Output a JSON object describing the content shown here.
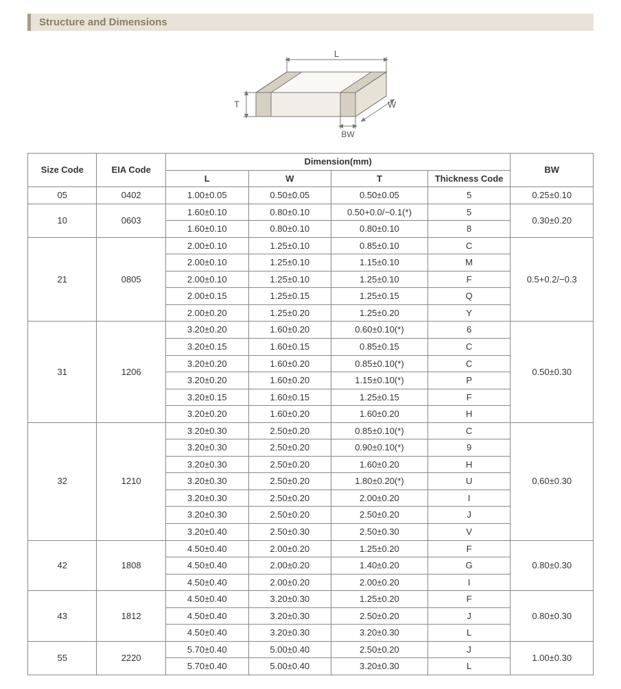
{
  "section_title": "Structure and Dimensions",
  "diagram": {
    "labels": {
      "L": "L",
      "W": "W",
      "T": "T",
      "BW": "BW"
    },
    "stroke": "#777777",
    "fill_top": "#faf8f5",
    "fill_front": "#f2eee6",
    "fill_side": "#e8e2d6",
    "fill_terminal": "#d6d0c3"
  },
  "table": {
    "headers": {
      "size": "Size Code",
      "eia": "EIA Code",
      "dim": "Dimension(mm)",
      "L": "L",
      "W": "W",
      "T": "T",
      "TC": "Thickness  Code",
      "BW": "BW"
    },
    "groups": [
      {
        "size": "05",
        "eia": "0402",
        "bw": "0.25±0.10",
        "rows": [
          {
            "L": "1.00±0.05",
            "W": "0.50±0.05",
            "T": "0.50±0.05",
            "TC": "5"
          }
        ]
      },
      {
        "size": "10",
        "eia": "0603",
        "bw": "0.30±0.20",
        "rows": [
          {
            "L": "1.60±0.10",
            "W": "0.80±0.10",
            "T": "0.50+0.0/−0.1(*)",
            "TC": "5"
          },
          {
            "L": "1.60±0.10",
            "W": "0.80±0.10",
            "T": "0.80±0.10",
            "TC": "8"
          }
        ]
      },
      {
        "size": "21",
        "eia": "0805",
        "bw": "0.5+0.2/−0.3",
        "rows": [
          {
            "L": "2.00±0.10",
            "W": "1.25±0.10",
            "T": "0.85±0.10",
            "TC": "C"
          },
          {
            "L": "2.00±0.10",
            "W": "1.25±0.10",
            "T": "1.15±0.10",
            "TC": "M"
          },
          {
            "L": "2.00±0.10",
            "W": "1.25±0.10",
            "T": "1.25±0.10",
            "TC": "F"
          },
          {
            "L": "2.00±0.15",
            "W": "1.25±0.15",
            "T": "1.25±0.15",
            "TC": "Q"
          },
          {
            "L": "2.00±0.20",
            "W": "1.25±0.20",
            "T": "1.25±0.20",
            "TC": "Y"
          }
        ]
      },
      {
        "size": "31",
        "eia": "1206",
        "bw": "0.50±0.30",
        "rows": [
          {
            "L": "3.20±0.20",
            "W": "1.60±0.20",
            "T": "0.60±0.10(*)",
            "TC": "6"
          },
          {
            "L": "3.20±0.15",
            "W": "1.60±0.15",
            "T": "0.85±0.15",
            "TC": "C"
          },
          {
            "L": "3.20±0.20",
            "W": "1.60±0.20",
            "T": "0.85±0.10(*)",
            "TC": "C"
          },
          {
            "L": "3.20±0.20",
            "W": "1.60±0.20",
            "T": "1.15±0.10(*)",
            "TC": "P"
          },
          {
            "L": "3.20±0.15",
            "W": "1.60±0.15",
            "T": "1.25±0.15",
            "TC": "F"
          },
          {
            "L": "3.20±0.20",
            "W": "1.60±0.20",
            "T": "1.60±0.20",
            "TC": "H"
          }
        ]
      },
      {
        "size": "32",
        "eia": "1210",
        "bw": "0.60±0.30",
        "rows": [
          {
            "L": "3.20±0.30",
            "W": "2.50±0.20",
            "T": "0.85±0.10(*)",
            "TC": "C"
          },
          {
            "L": "3.20±0.30",
            "W": "2.50±0.20",
            "T": "0.90±0.10(*)",
            "TC": "9"
          },
          {
            "L": "3.20±0.30",
            "W": "2.50±0.20",
            "T": "1.60±0.20",
            "TC": "H"
          },
          {
            "L": "3.20±0.30",
            "W": "2.50±0.20",
            "T": "1.80±0.20(*)",
            "TC": "U"
          },
          {
            "L": "3.20±0.30",
            "W": "2.50±0.20",
            "T": "2.00±0.20",
            "TC": "I"
          },
          {
            "L": "3.20±0.30",
            "W": "2.50±0.20",
            "T": "2.50±0.20",
            "TC": "J"
          },
          {
            "L": "3.20±0.40",
            "W": "2.50±0.30",
            "T": "2.50±0.30",
            "TC": "V"
          }
        ]
      },
      {
        "size": "42",
        "eia": "1808",
        "bw": "0.80±0.30",
        "rows": [
          {
            "L": "4.50±0.40",
            "W": "2.00±0.20",
            "T": "1.25±0.20",
            "TC": "F"
          },
          {
            "L": "4.50±0.40",
            "W": "2.00±0.20",
            "T": "1.40±0.20",
            "TC": "G"
          },
          {
            "L": "4.50±0.40",
            "W": "2.00±0.20",
            "T": "2.00±0.20",
            "TC": "I"
          }
        ]
      },
      {
        "size": "43",
        "eia": "1812",
        "bw": "0.80±0.30",
        "rows": [
          {
            "L": "4.50±0.40",
            "W": "3.20±0.30",
            "T": "1.25±0.20",
            "TC": "F"
          },
          {
            "L": "4.50±0.40",
            "W": "3.20±0.30",
            "T": "2.50±0.20",
            "TC": "J"
          },
          {
            "L": "4.50±0.40",
            "W": "3.20±0.30",
            "T": "3.20±0.30",
            "TC": "L"
          }
        ]
      },
      {
        "size": "55",
        "eia": "2220",
        "bw": "1.00±0.30",
        "rows": [
          {
            "L": "5.70±0.40",
            "W": "5.00±0.40",
            "T": "2.50±0.20",
            "TC": "J"
          },
          {
            "L": "5.70±0.40",
            "W": "5.00±0.40",
            "T": "3.20±0.30",
            "TC": "L"
          }
        ]
      }
    ]
  }
}
